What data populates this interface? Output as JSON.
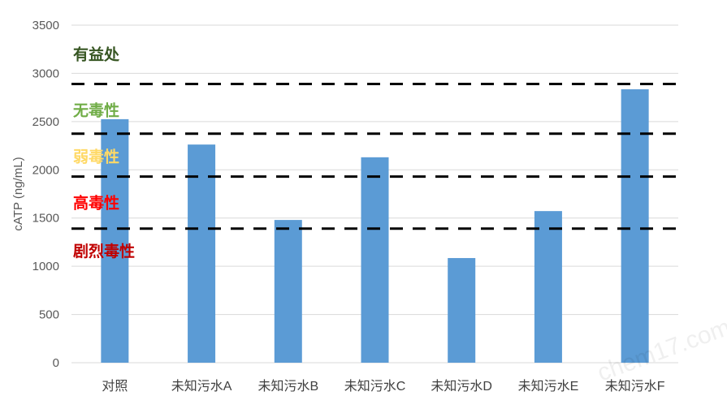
{
  "chart_data": {
    "type": "bar",
    "title": "",
    "xlabel": "",
    "ylabel": "cATP (ng/mL)",
    "ylim": [
      0,
      3500
    ],
    "yticks": [
      0,
      500,
      1000,
      1500,
      2000,
      2500,
      3000,
      3500
    ],
    "grid": true,
    "categories": [
      "对照",
      "未知污水A",
      "未知污水B",
      "未知污水C",
      "未知污水D",
      "未知污水E",
      "未知污水F"
    ],
    "values": [
      2525,
      2262,
      1480,
      2130,
      1085,
      1572,
      2835
    ],
    "bar_color": "#5b9bd5",
    "threshold_lines": [
      2890,
      2375,
      1930,
      1390
    ],
    "threshold_line_color": "#000000",
    "zones": [
      {
        "label": "有益处",
        "color": "#375623",
        "y": 3200
      },
      {
        "label": "无毒性",
        "color": "#70ad47",
        "y": 2620
      },
      {
        "label": "弱毒性",
        "color": "#ffd966",
        "y": 2140
      },
      {
        "label": "高毒性",
        "color": "#ff0000",
        "y": 1660
      },
      {
        "label": "剧烈毒性",
        "color": "#c00000",
        "y": 1160
      }
    ]
  },
  "watermark": "chem17.com"
}
